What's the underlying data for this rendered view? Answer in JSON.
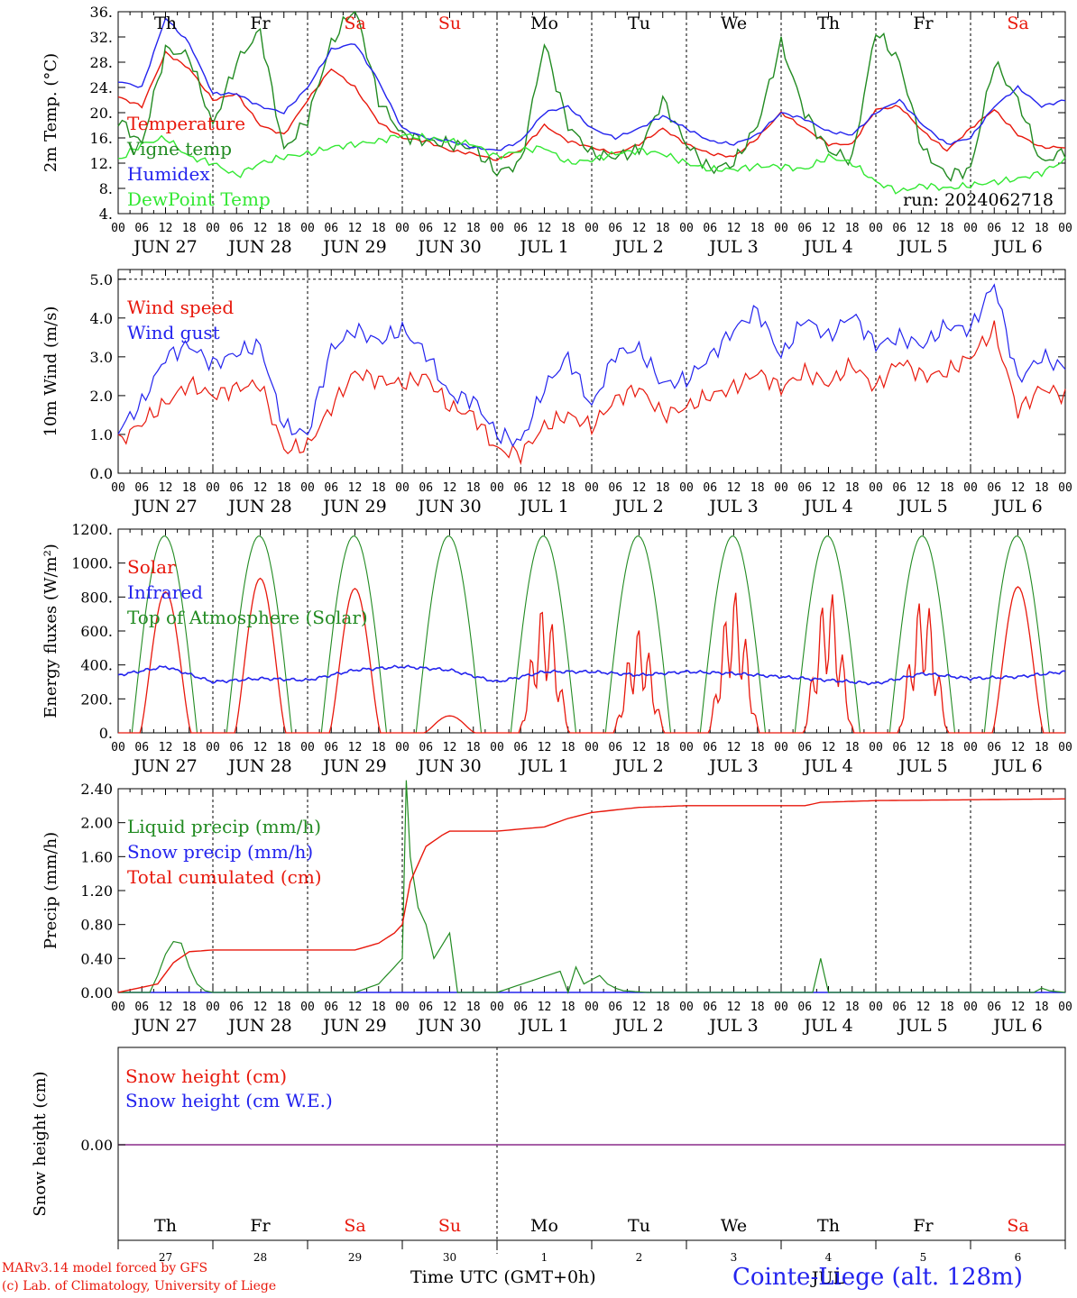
{
  "chart_data": [
    {
      "type": "line",
      "ylabel": "2m Temp. (°C)",
      "y_ticks": [
        "4.",
        "8.",
        "12.",
        "16.",
        "20.",
        "24.",
        "28.",
        "32.",
        "36."
      ],
      "ylim": [
        4,
        36
      ],
      "x_hours": [
        0,
        6,
        12,
        18,
        24,
        30,
        36,
        42,
        48,
        54,
        60,
        66,
        72,
        78,
        84,
        90,
        96,
        102,
        108,
        114,
        120,
        126,
        132,
        138,
        144,
        150,
        156,
        162,
        168,
        174,
        180,
        186,
        192,
        198,
        204,
        210,
        216,
        222,
        228,
        234,
        240
      ],
      "series": [
        {
          "name": "Temperature",
          "color": "#e8180c",
          "values": [
            22.5,
            21,
            29.5,
            27,
            22,
            23,
            18,
            16.5,
            22,
            27,
            24,
            18.5,
            16,
            15.5,
            14,
            13.5,
            12.5,
            14,
            18,
            15.5,
            14.5,
            13.5,
            15,
            17.5,
            15,
            13.5,
            13,
            16,
            20,
            17.5,
            15,
            15,
            20.5,
            21,
            17,
            14,
            17.5,
            20.5,
            16.5,
            14.5,
            14.5
          ]
        },
        {
          "name": "Vigne temp",
          "color": "#228b22",
          "values": [
            19,
            15,
            30,
            29,
            18,
            28,
            33,
            14,
            19,
            31,
            37,
            22,
            16.5,
            15.5,
            15,
            14.5,
            10.5,
            12,
            31,
            18,
            13.5,
            13,
            14,
            22,
            15,
            11,
            12,
            18,
            31,
            20,
            14,
            12.5,
            33,
            28,
            14,
            10,
            11,
            28,
            22,
            12,
            14
          ]
        },
        {
          "name": "Humidex",
          "color": "#2323ee",
          "values": [
            25,
            24,
            35,
            31,
            23,
            23,
            21,
            20,
            24,
            30,
            31,
            25,
            17.5,
            16,
            15.5,
            14.5,
            14,
            15.5,
            20,
            21,
            17.5,
            16,
            17.5,
            19.5,
            17.5,
            15.5,
            15,
            16.5,
            20,
            19,
            17,
            16.5,
            20,
            22,
            18,
            15,
            16,
            21,
            24,
            21,
            22
          ]
        },
        {
          "name": "DewPoint Temp",
          "color": "#33e833",
          "values": [
            12.5,
            15,
            16,
            13,
            12,
            10,
            12,
            13,
            13.5,
            14.5,
            15,
            15.5,
            16.5,
            16,
            15.5,
            15,
            13,
            14,
            14.5,
            12,
            12.5,
            13.5,
            14,
            13.5,
            12,
            11,
            11,
            11.5,
            11.5,
            11,
            13,
            12,
            9,
            7.5,
            8.5,
            8,
            8.5,
            9,
            9.5,
            10.5,
            12.5
          ]
        }
      ],
      "annotation": "run: 2024062718"
    },
    {
      "type": "line",
      "ylabel": "10m Wind (m/s)",
      "y_ticks": [
        "0.0",
        "1.0",
        "2.0",
        "3.0",
        "4.0",
        "5.0"
      ],
      "ylim": [
        0,
        5.25
      ],
      "x_hours": [
        0,
        6,
        12,
        18,
        24,
        30,
        36,
        42,
        48,
        54,
        60,
        66,
        72,
        78,
        84,
        90,
        96,
        102,
        108,
        114,
        120,
        126,
        132,
        138,
        144,
        150,
        156,
        162,
        168,
        174,
        180,
        186,
        192,
        198,
        204,
        210,
        216,
        222,
        228,
        234,
        240
      ],
      "series": [
        {
          "name": "Wind speed",
          "color": "#e8180c",
          "values": [
            0.8,
            1.3,
            1.8,
            2.3,
            2.0,
            2.2,
            2.3,
            0.6,
            0.7,
            1.7,
            2.6,
            2.4,
            2.3,
            2.5,
            1.7,
            1.5,
            0.6,
            0.5,
            1.2,
            1.5,
            1.2,
            1.9,
            2.2,
            1.5,
            1.7,
            2.0,
            2.2,
            2.6,
            2.2,
            2.6,
            2.3,
            2.8,
            2.2,
            2.9,
            2.5,
            2.6,
            3.0,
            3.7,
            1.6,
            2.2,
            2.0
          ]
        },
        {
          "name": "Wind gust",
          "color": "#2323ee",
          "values": [
            1.1,
            1.8,
            3.0,
            3.3,
            2.8,
            3.1,
            3.3,
            1.2,
            1.0,
            3.2,
            3.7,
            3.4,
            3.7,
            3.1,
            2.0,
            1.9,
            1.0,
            0.8,
            2.2,
            3.0,
            1.7,
            3.1,
            3.2,
            2.3,
            2.4,
            3.0,
            3.7,
            4.2,
            3.0,
            4.0,
            3.5,
            4.1,
            3.3,
            3.5,
            3.3,
            3.8,
            3.7,
            4.9,
            2.4,
            3.0,
            2.7
          ]
        }
      ]
    },
    {
      "type": "line",
      "ylabel": "Energy fluxes (W/m²)",
      "y_ticks": [
        "0.",
        "200.",
        "400.",
        "600.",
        "800.",
        "1000.",
        "1200."
      ],
      "ylim": [
        0,
        1200
      ],
      "toa_peak": 1160,
      "solar_peaks": [
        830,
        910,
        850,
        100,
        760,
        620,
        840,
        850,
        810,
        860
      ],
      "infrared": {
        "x_hours": [
          0,
          12,
          24,
          36,
          48,
          60,
          72,
          84,
          96,
          108,
          120,
          132,
          144,
          156,
          168,
          180,
          192,
          204,
          216,
          228,
          240
        ],
        "values": [
          340,
          390,
          300,
          320,
          310,
          370,
          390,
          370,
          300,
          360,
          360,
          340,
          360,
          350,
          330,
          310,
          290,
          350,
          320,
          330,
          360
        ]
      },
      "series": [
        {
          "name": "Solar",
          "color": "#e8180c"
        },
        {
          "name": "Infrared",
          "color": "#2323ee"
        },
        {
          "name": "Top of Atmosphere (Solar)",
          "color": "#228b22"
        }
      ]
    },
    {
      "type": "line",
      "ylabel": "Precip (mm/h)",
      "y_ticks": [
        "0.00",
        "0.40",
        "0.80",
        "1.20",
        "1.60",
        "2.00",
        "2.40"
      ],
      "ylim": [
        0,
        2.4
      ],
      "liquid": {
        "x_hours": [
          0,
          8,
          10,
          12,
          14,
          16,
          18,
          20,
          22,
          24,
          60,
          66,
          70,
          72,
          73,
          74,
          76,
          78,
          80,
          84,
          86,
          88,
          96,
          112,
          114,
          116,
          118,
          122,
          124,
          126,
          128,
          134,
          176,
          178,
          180,
          232,
          234,
          236,
          240
        ],
        "values": [
          0,
          0,
          0.2,
          0.45,
          0.6,
          0.58,
          0.3,
          0.1,
          0.02,
          0,
          0,
          0.1,
          0.3,
          0.4,
          2.5,
          1.6,
          1.0,
          0.8,
          0.4,
          0.7,
          0,
          0,
          0,
          0.25,
          0,
          0.3,
          0.1,
          0.2,
          0.1,
          0.05,
          0.02,
          0,
          0,
          0.4,
          0,
          0,
          0.05,
          0.02,
          0
        ]
      },
      "cumulated": {
        "x_hours": [
          0,
          10,
          14,
          18,
          24,
          36,
          60,
          66,
          70,
          72,
          74,
          78,
          82,
          84,
          96,
          108,
          114,
          120,
          132,
          144,
          174,
          178,
          192,
          216,
          240
        ],
        "values": [
          0,
          0.1,
          0.35,
          0.48,
          0.5,
          0.5,
          0.5,
          0.58,
          0.7,
          0.8,
          1.3,
          1.72,
          1.85,
          1.9,
          1.9,
          1.95,
          2.05,
          2.12,
          2.18,
          2.2,
          2.2,
          2.24,
          2.26,
          2.27,
          2.28
        ]
      },
      "series": [
        {
          "name": "Liquid precip (mm/h)",
          "color": "#228b22"
        },
        {
          "name": "Snow precip (mm/h)",
          "color": "#2323ee"
        },
        {
          "name": "Total cumulated (cm)",
          "color": "#e8180c"
        }
      ]
    },
    {
      "type": "line",
      "ylabel": "Snow height (cm)",
      "y_ticks": [
        "0.00"
      ],
      "value": 0.0,
      "series": [
        {
          "name": "Snow height (cm)",
          "color": "#e8180c"
        },
        {
          "name": "Snow height (cm W.E.)",
          "color": "#2323ee"
        }
      ]
    }
  ],
  "hour_ticks": [
    "00",
    "06",
    "12",
    "18"
  ],
  "date_labels": [
    "JUN 27",
    "JUN 28",
    "JUN 29",
    "JUN 30",
    "JUL  1",
    "JUL  2",
    "JUL  3",
    "JUL  4",
    "JUL  5",
    "JUL  6"
  ],
  "weekdays": [
    {
      "label": "Th",
      "color": "#000000"
    },
    {
      "label": "Fr",
      "color": "#000000"
    },
    {
      "label": "Sa",
      "color": "#e8180c"
    },
    {
      "label": "Su",
      "color": "#e8180c"
    },
    {
      "label": "Mo",
      "color": "#000000"
    },
    {
      "label": "Tu",
      "color": "#000000"
    },
    {
      "label": "We",
      "color": "#000000"
    },
    {
      "label": "Th",
      "color": "#000000"
    },
    {
      "label": "Fr",
      "color": "#000000"
    },
    {
      "label": "Sa",
      "color": "#e8180c"
    }
  ],
  "day_numbers": [
    "27",
    "28",
    "29",
    "30",
    "1",
    "2",
    "3",
    "4",
    "5",
    "6"
  ],
  "bottom_month": "JUL",
  "footer": {
    "credit_line1": "MARv3.14 model forced by GFS",
    "credit_line2": "(c) Lab. of Climatology, University of Liege",
    "xlabel": "Time UTC (GMT+0h)",
    "station": "Cointe-Liege (alt. 128m)"
  }
}
